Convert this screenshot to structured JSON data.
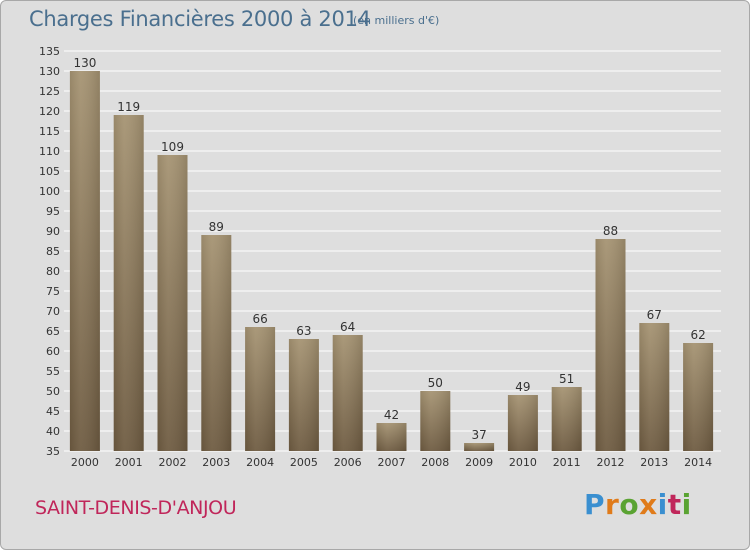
{
  "header": {
    "title": "Charges Financières 2000 à 2014",
    "subtitle": "(en milliers d'€)"
  },
  "footer": {
    "commune": "SAINT-DENIS-D'ANJOU",
    "logo": "Proxiti"
  },
  "colors": {
    "bar_top": "#a59372",
    "bar_bottom": "#6e5b41",
    "title": "#4a6f8e",
    "commune": "#c0265a",
    "logo": [
      "#3a8fd0",
      "#e07b1a",
      "#5aa332",
      "#e07b1a",
      "#3a8fd0",
      "#c0265a",
      "#5aa332"
    ]
  },
  "chart_data": {
    "type": "bar",
    "title": "Charges Financières 2000 à 2014",
    "subtitle": "(en milliers d'€)",
    "categories": [
      "2000",
      "2001",
      "2002",
      "2003",
      "2004",
      "2005",
      "2006",
      "2007",
      "2008",
      "2009",
      "2010",
      "2011",
      "2012",
      "2013",
      "2014"
    ],
    "values": [
      130,
      119,
      109,
      89,
      66,
      63,
      64,
      42,
      50,
      37,
      49,
      51,
      88,
      67,
      62
    ],
    "ylim": [
      35,
      135
    ],
    "yticks": [
      35,
      40,
      45,
      50,
      55,
      60,
      65,
      70,
      75,
      80,
      85,
      90,
      95,
      100,
      105,
      110,
      115,
      120,
      125,
      130,
      135
    ],
    "grid": true,
    "data_labels": true
  }
}
